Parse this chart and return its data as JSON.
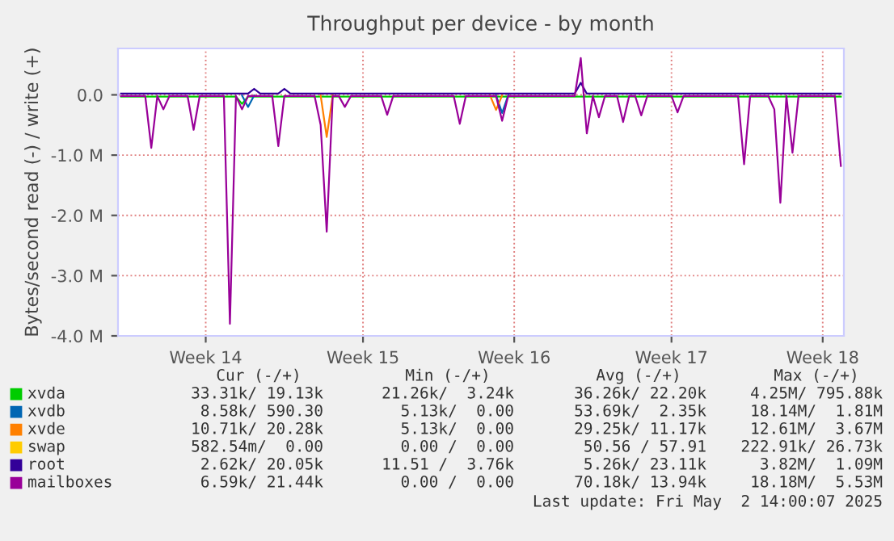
{
  "chart_data": {
    "type": "line",
    "title": "Throughput per device - by month",
    "ylabel": "Bytes/second read (-) / write (+)",
    "categories": [
      null,
      null,
      null,
      null,
      null,
      null,
      null,
      null,
      null,
      null,
      null,
      null,
      null,
      null,
      "Week 14",
      null,
      null,
      null,
      null,
      null,
      null,
      null,
      null,
      null,
      null,
      null,
      null,
      null,
      null,
      null,
      null,
      null,
      null,
      null,
      null,
      null,
      null,
      null,
      null,
      null,
      "Week 15",
      null,
      null,
      null,
      null,
      null,
      null,
      null,
      null,
      null,
      null,
      null,
      null,
      null,
      null,
      null,
      null,
      null,
      null,
      null,
      null,
      null,
      null,
      null,
      null,
      "Week 16",
      null,
      null,
      null,
      null,
      null,
      null,
      null,
      null,
      null,
      null,
      null,
      null,
      null,
      null,
      null,
      null,
      null,
      null,
      null,
      null,
      null,
      null,
      null,
      null,
      null,
      "Week 17",
      null,
      null,
      null,
      null,
      null,
      null,
      null,
      null,
      null,
      null,
      null,
      null,
      null,
      null,
      null,
      null,
      null,
      null,
      null,
      null,
      null,
      null,
      null,
      null,
      "Week 18",
      null,
      null,
      null
    ],
    "ylim": [
      -4,
      0.77
    ],
    "yticks": [
      {
        "value": -4,
        "label": "-4.0 M"
      },
      {
        "value": -3,
        "label": "-3.0 M"
      },
      {
        "value": -2,
        "label": "-2.0 M"
      },
      {
        "value": -1,
        "label": "-1.0 M"
      },
      {
        "value": 0,
        "label": "0.0"
      }
    ],
    "grid": true,
    "legend": "bottom",
    "line_style": "solid",
    "marker": "none",
    "series": [
      {
        "name": "xvda",
        "color": "#00cc00",
        "values": [
          -0.03,
          -0.03,
          -0.03,
          -0.03,
          -0.03,
          -0.03,
          -0.03,
          -0.03,
          -0.03,
          -0.03,
          -0.03,
          -0.03,
          -0.03,
          -0.03,
          -0.03,
          -0.03,
          -0.03,
          -0.03,
          -0.03,
          -0.03,
          -0.15,
          -0.03,
          -0.03,
          -0.03,
          -0.03,
          -0.03,
          -0.03,
          -0.03,
          -0.03,
          -0.03,
          -0.03,
          -0.03,
          -0.03,
          -0.03,
          -0.03,
          -0.03,
          -0.03,
          -0.03,
          -0.03,
          -0.03,
          -0.03,
          -0.03,
          -0.03,
          -0.03,
          -0.03,
          -0.03,
          -0.03,
          -0.03,
          -0.03,
          -0.03,
          -0.03,
          -0.03,
          -0.03,
          -0.03,
          -0.03,
          -0.03,
          -0.03,
          -0.03,
          -0.03,
          -0.03,
          -0.03,
          -0.03,
          -0.03,
          -0.03,
          -0.03,
          -0.03,
          -0.03,
          -0.03,
          -0.03,
          -0.03,
          -0.03,
          -0.03,
          -0.03,
          -0.03,
          -0.03,
          -0.03,
          -0.03,
          -0.03,
          -0.03,
          -0.03,
          -0.03,
          -0.03,
          -0.03,
          -0.03,
          -0.03,
          -0.03,
          -0.03,
          -0.03,
          -0.03,
          -0.03,
          -0.03,
          -0.03,
          -0.03,
          -0.03,
          -0.03,
          -0.03,
          -0.03,
          -0.03,
          -0.03,
          -0.03,
          -0.03,
          -0.03,
          -0.03,
          -0.03,
          -0.03,
          -0.03,
          -0.03,
          -0.03,
          -0.03,
          -0.03,
          -0.03,
          -0.03,
          -0.03,
          -0.03,
          -0.03,
          -0.03,
          -0.03,
          -0.03,
          -0.03,
          -0.03
        ]
      },
      {
        "name": "xvdb",
        "color": "#0066b3",
        "values": [
          null,
          null,
          null,
          null,
          null,
          null,
          null,
          null,
          null,
          null,
          null,
          null,
          null,
          null,
          null,
          null,
          null,
          null,
          null,
          null,
          -0.01,
          -0.2,
          -0.01,
          null,
          null,
          null,
          null,
          null,
          null,
          null,
          null,
          null,
          null,
          null,
          null,
          null,
          null,
          null,
          null,
          null,
          null,
          null,
          null,
          null,
          null,
          null,
          null,
          null,
          null,
          null,
          null,
          null,
          null,
          null,
          null,
          null,
          null,
          null,
          null,
          null,
          null,
          null,
          -0.01,
          -0.3,
          -0.01,
          null,
          null,
          null,
          null,
          null,
          null,
          null,
          null,
          null,
          null,
          null,
          null,
          null,
          null,
          null,
          null,
          null,
          null,
          null,
          null,
          null,
          null,
          null,
          null,
          null,
          null,
          null,
          null,
          null,
          null,
          null,
          null,
          null,
          null,
          null,
          null,
          null,
          null,
          null,
          null,
          null,
          null,
          null,
          null,
          null,
          null,
          null,
          null,
          null,
          null,
          null,
          null,
          null,
          null,
          null
        ]
      },
      {
        "name": "xvde",
        "color": "#ff8000",
        "values": [
          null,
          null,
          null,
          null,
          null,
          null,
          null,
          null,
          null,
          null,
          null,
          null,
          null,
          null,
          null,
          null,
          null,
          null,
          null,
          null,
          null,
          null,
          null,
          null,
          null,
          null,
          null,
          null,
          null,
          null,
          null,
          null,
          null,
          -0.01,
          -0.7,
          -0.01,
          null,
          null,
          null,
          null,
          null,
          null,
          null,
          null,
          null,
          null,
          null,
          null,
          null,
          null,
          null,
          null,
          null,
          null,
          null,
          null,
          null,
          null,
          null,
          null,
          null,
          -0.01,
          -0.25,
          -0.01,
          null,
          null,
          null,
          null,
          null,
          null,
          null,
          null,
          null,
          null,
          null,
          null,
          null,
          null,
          null,
          null,
          null,
          null,
          null,
          null,
          null,
          null,
          null,
          null,
          null,
          null,
          null,
          null,
          null,
          null,
          null,
          null,
          null,
          null,
          null,
          null,
          null,
          null,
          null,
          null,
          null,
          null,
          null,
          null,
          null,
          null,
          null,
          null,
          null,
          null,
          null,
          null,
          null,
          null,
          null,
          null
        ]
      },
      {
        "name": "swap",
        "color": "#ffcc00",
        "values": [
          null,
          null,
          null,
          null,
          null,
          null,
          null,
          null,
          null,
          null,
          null,
          null,
          null,
          null,
          null,
          null,
          null,
          null,
          null,
          null,
          null,
          null,
          null,
          null,
          null,
          null,
          null,
          null,
          null,
          null,
          null,
          null,
          null,
          null,
          null,
          null,
          null,
          null,
          null,
          null,
          null,
          null,
          null,
          null,
          null,
          null,
          null,
          null,
          null,
          null,
          null,
          null,
          null,
          null,
          null,
          null,
          null,
          null,
          null,
          null,
          null,
          null,
          null,
          null,
          null,
          null,
          null,
          null,
          null,
          null,
          null,
          null,
          null,
          null,
          null,
          null,
          null,
          null,
          null,
          null,
          null,
          null,
          null,
          null,
          null,
          null,
          null,
          null,
          null,
          null,
          null,
          null,
          null,
          null,
          null,
          null,
          null,
          null,
          null,
          null,
          null,
          null,
          null,
          null,
          null,
          null,
          null,
          null,
          null,
          null,
          null,
          null,
          null,
          null,
          null,
          null,
          null,
          null,
          null,
          null
        ]
      },
      {
        "name": "root",
        "color": "#330099",
        "values": [
          0.02,
          0.02,
          0.02,
          0.02,
          0.02,
          0.02,
          0.02,
          0.02,
          0.02,
          0.02,
          0.02,
          0.02,
          0.02,
          0.02,
          0.02,
          0.02,
          0.02,
          0.02,
          0.02,
          0.02,
          0.02,
          0.02,
          0.1,
          0.02,
          0.02,
          0.02,
          0.02,
          0.1,
          0.02,
          0.02,
          0.02,
          0.02,
          0.02,
          0.02,
          0.02,
          0.02,
          0.02,
          0.02,
          0.02,
          0.02,
          0.02,
          0.02,
          0.02,
          0.02,
          0.02,
          0.02,
          0.02,
          0.02,
          0.02,
          0.02,
          0.02,
          0.02,
          0.02,
          0.02,
          0.02,
          0.02,
          0.02,
          0.02,
          0.02,
          0.02,
          0.02,
          0.02,
          0.02,
          0.02,
          0.02,
          0.02,
          0.02,
          0.02,
          0.02,
          0.02,
          0.02,
          0.02,
          0.02,
          0.02,
          0.02,
          0.02,
          0.2,
          0.02,
          0.02,
          0.02,
          0.02,
          0.02,
          0.02,
          0.02,
          0.02,
          0.02,
          0.02,
          0.02,
          0.02,
          0.02,
          0.02,
          0.02,
          0.02,
          0.02,
          0.02,
          0.02,
          0.02,
          0.02,
          0.02,
          0.02,
          0.02,
          0.02,
          0.02,
          0.02,
          0.02,
          0.02,
          0.02,
          0.02,
          0.02,
          0.02,
          0.02,
          0.02,
          0.02,
          0.02,
          0.02,
          0.02,
          0.02,
          0.02,
          0.02,
          0.02
        ]
      },
      {
        "name": "mailboxes",
        "color": "#990099",
        "values": [
          -0.02,
          -0.02,
          -0.02,
          -0.02,
          -0.02,
          -0.88,
          -0.02,
          -0.24,
          -0.02,
          -0.02,
          -0.02,
          -0.02,
          -0.58,
          -0.02,
          -0.02,
          -0.02,
          -0.02,
          -0.02,
          -3.8,
          -0.02,
          -0.24,
          -0.02,
          -0.02,
          -0.02,
          -0.02,
          -0.02,
          -0.85,
          -0.02,
          -0.02,
          -0.02,
          -0.02,
          -0.02,
          -0.02,
          -0.5,
          -2.27,
          -0.02,
          -0.02,
          -0.2,
          -0.02,
          -0.02,
          -0.02,
          -0.02,
          -0.02,
          -0.02,
          -0.33,
          -0.02,
          -0.02,
          -0.02,
          -0.02,
          -0.02,
          -0.02,
          -0.02,
          -0.02,
          -0.02,
          -0.02,
          -0.02,
          -0.48,
          -0.02,
          -0.02,
          -0.02,
          -0.02,
          -0.02,
          -0.02,
          -0.43,
          -0.02,
          -0.02,
          -0.02,
          -0.02,
          -0.02,
          -0.02,
          -0.02,
          -0.02,
          -0.02,
          -0.02,
          -0.02,
          -0.02,
          0.61,
          -0.64,
          -0.02,
          -0.37,
          -0.02,
          -0.02,
          -0.02,
          -0.45,
          -0.02,
          -0.02,
          -0.34,
          -0.02,
          -0.02,
          -0.02,
          -0.02,
          -0.02,
          -0.29,
          -0.02,
          -0.02,
          -0.02,
          -0.02,
          -0.02,
          -0.02,
          -0.02,
          -0.02,
          -0.02,
          -0.02,
          -1.15,
          -0.02,
          -0.02,
          -0.02,
          -0.02,
          -0.24,
          -1.79,
          -0.02,
          -0.96,
          -0.02,
          -0.02,
          -0.02,
          -0.02,
          -0.02,
          -0.02,
          -0.02,
          -1.18
        ]
      }
    ],
    "annotations": [
      "Cur (-/+)",
      "Min (-/+)",
      "Avg (-/+)",
      "Max (-/+)",
      "33.31k/ 19.13k",
      "21.26k/  3.24k",
      "36.26k/ 22.20k",
      "4.25M/ 795.88k",
      "8.58k/ 590.30",
      "5.13k/  0.00",
      "53.69k/  2.35k",
      "18.14M/  1.81M",
      "10.71k/ 20.28k",
      "5.13k/  0.00",
      "29.25k/ 11.17k",
      "12.61M/  3.67M",
      "582.54m/  0.00",
      "0.00 /  0.00",
      "50.56 / 57.91",
      "222.91k/ 26.73k",
      "2.62k/ 20.05k",
      "11.51 /  3.76k",
      "5.26k/ 23.11k",
      "3.82M/  1.09M",
      "6.59k/ 21.44k",
      "0.00 /  0.00",
      "70.18k/ 13.94k",
      "18.18M/  5.53M",
      "Last update: Fri May  2 14:00:07 2025"
    ]
  }
}
